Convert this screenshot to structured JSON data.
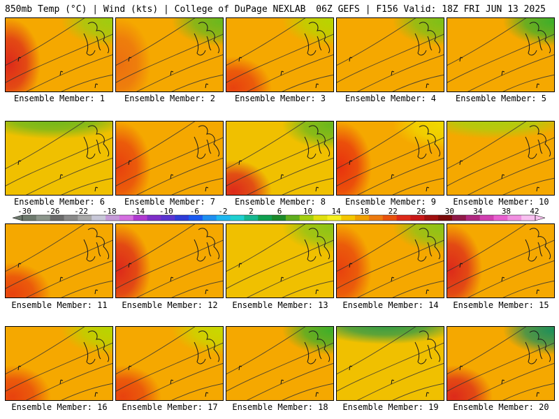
{
  "header": {
    "left": "850mb Temp (°C) | Wind (kts) | College of DuPage NEXLAB",
    "right": "06Z GEFS | F156 Valid: 18Z FRI JUN 13 2025"
  },
  "panels": [
    {
      "label": "Ensemble Member: 1",
      "base": "#f5a800",
      "features": [
        {
          "k": "warm",
          "c": "#dd2a1a",
          "q": "w"
        },
        {
          "k": "cool",
          "c": "#9fcc10",
          "q": "ne"
        }
      ]
    },
    {
      "label": "Ensemble Member: 2",
      "base": "#f5a800",
      "features": [
        {
          "k": "warm",
          "c": "#ec7010",
          "q": "w"
        },
        {
          "k": "cool",
          "c": "#6ab81e",
          "q": "ne"
        }
      ]
    },
    {
      "label": "Ensemble Member: 3",
      "base": "#f5a800",
      "features": [
        {
          "k": "warm",
          "c": "#e8420e",
          "q": "sw"
        },
        {
          "k": "cool",
          "c": "#b8d400",
          "q": "ne"
        }
      ]
    },
    {
      "label": "Ensemble Member: 4",
      "base": "#f5a800",
      "features": [
        {
          "k": "cool",
          "c": "#7ec018",
          "q": "ne"
        }
      ]
    },
    {
      "label": "Ensemble Member: 5",
      "base": "#f5a800",
      "features": [
        {
          "k": "cool",
          "c": "#3fae2a",
          "q": "ne"
        }
      ]
    },
    {
      "label": "Ensemble Member: 6",
      "base": "#f0c000",
      "features": [
        {
          "k": "cool",
          "c": "#6ab81e",
          "q": "n"
        }
      ]
    },
    {
      "label": "Ensemble Member: 7",
      "base": "#f5a800",
      "features": [
        {
          "k": "warm",
          "c": "#e8420e",
          "q": "w"
        }
      ]
    },
    {
      "label": "Ensemble Member: 8",
      "base": "#f0c000",
      "features": [
        {
          "k": "warm",
          "c": "#dd2a1a",
          "q": "sw"
        },
        {
          "k": "cool",
          "c": "#6ab81e",
          "q": "ne"
        }
      ]
    },
    {
      "label": "Ensemble Member: 9",
      "base": "#f5a800",
      "features": [
        {
          "k": "warm",
          "c": "#e8320e",
          "q": "w"
        },
        {
          "k": "cool",
          "c": "#f0d800",
          "q": "ne"
        }
      ]
    },
    {
      "label": "Ensemble Member: 10",
      "base": "#f5a800",
      "features": [
        {
          "k": "cool",
          "c": "#a8d010",
          "q": "n"
        }
      ]
    },
    {
      "label": "Ensemble Member: 11",
      "base": "#f5a800",
      "features": [
        {
          "k": "warm",
          "c": "#e8420e",
          "q": "sw"
        }
      ]
    },
    {
      "label": "Ensemble Member: 12",
      "base": "#f5a800",
      "features": [
        {
          "k": "warm",
          "c": "#dd2a1a",
          "q": "w"
        }
      ]
    },
    {
      "label": "Ensemble Member: 13",
      "base": "#f0c000",
      "features": [
        {
          "k": "cool",
          "c": "#8cc418",
          "q": "ne"
        }
      ]
    },
    {
      "label": "Ensemble Member: 14",
      "base": "#f5a800",
      "features": [
        {
          "k": "warm",
          "c": "#e8420e",
          "q": "w"
        },
        {
          "k": "cool",
          "c": "#8cc418",
          "q": "ne"
        }
      ]
    },
    {
      "label": "Ensemble Member: 15",
      "base": "#f5a800",
      "features": [
        {
          "k": "warm",
          "c": "#dd2a1a",
          "q": "w"
        }
      ]
    },
    {
      "label": "Ensemble Member: 16",
      "base": "#f5a800",
      "features": [
        {
          "k": "warm",
          "c": "#e8420e",
          "q": "sw"
        },
        {
          "k": "cool",
          "c": "#b8d400",
          "q": "ne"
        }
      ]
    },
    {
      "label": "Ensemble Member: 17",
      "base": "#f5a800",
      "features": [
        {
          "k": "warm",
          "c": "#e8420e",
          "q": "sw"
        },
        {
          "k": "cool",
          "c": "#c8d800",
          "q": "ne"
        }
      ]
    },
    {
      "label": "Ensemble Member: 18",
      "base": "#f5a800",
      "features": [
        {
          "k": "cool",
          "c": "#3fae2a",
          "q": "ne"
        }
      ]
    },
    {
      "label": "Ensemble Member: 19",
      "base": "#f0c000",
      "features": [
        {
          "k": "cool",
          "c": "#2d9a4a",
          "q": "n"
        }
      ]
    },
    {
      "label": "Ensemble Member: 20",
      "base": "#f5a800",
      "features": [
        {
          "k": "warm",
          "c": "#dd2a1a",
          "q": "sw"
        },
        {
          "k": "cool",
          "c": "#1f8f5a",
          "q": "ne"
        }
      ]
    }
  ],
  "colorbar": {
    "tick_labels": [
      "-30",
      "-26",
      "-22",
      "-18",
      "-14",
      "-10",
      "-6",
      "-2",
      "2",
      "6",
      "10",
      "14",
      "18",
      "22",
      "26",
      "30",
      "34",
      "38",
      "42"
    ],
    "colors": [
      "#6e7a6e",
      "#8c968c",
      "#6b6b6b",
      "#8a8a8a",
      "#a8a8a8",
      "#c8c8d8",
      "#c59bd9",
      "#d46fe0",
      "#b03ad0",
      "#7e2fc8",
      "#5a35d0",
      "#2f3cd8",
      "#1a5af0",
      "#1f8ff0",
      "#1fb8f0",
      "#20d0d0",
      "#16b890",
      "#10a050",
      "#1c8a2a",
      "#5fae1e",
      "#a4cf10",
      "#e0e010",
      "#f6f020",
      "#f4c600",
      "#f0a000",
      "#ec7a10",
      "#e8520e",
      "#dd2a1a",
      "#c81818",
      "#a01010",
      "#7a0a0a",
      "#901a48",
      "#b02880",
      "#d040b0",
      "#e860d0",
      "#f090e0",
      "#f8c0f0"
    ]
  }
}
